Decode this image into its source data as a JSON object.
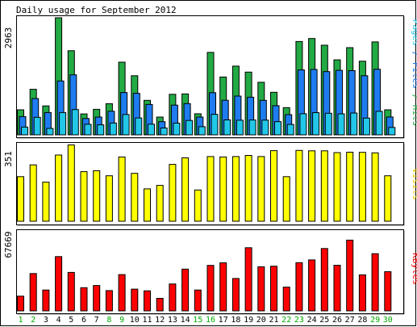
{
  "chart_data": [
    {
      "type": "bar",
      "title": "Daily usage for September 2012",
      "y_tick_label": "2963",
      "ylim": [
        0,
        2963
      ],
      "series": [
        {
          "name": "Hits",
          "color": "#22aa44",
          "values": [
            634,
            1152,
            731,
            2963,
            2129,
            530,
            646,
            788,
            1840,
            1495,
            872,
            450,
            1025,
            1036,
            533,
            2087,
            1464,
            1739,
            1588,
            1330,
            1077,
            689,
            2362,
            2438,
            2268,
            1899,
            2207,
            1863,
            2351,
            634
          ]
        },
        {
          "name": "Files",
          "color": "#1e7cf0",
          "values": [
            462,
            918,
            565,
            1363,
            1519,
            412,
            449,
            596,
            1071,
            1050,
            768,
            334,
            751,
            790,
            449,
            1066,
            875,
            981,
            953,
            872,
            738,
            511,
            1643,
            1655,
            1599,
            1633,
            1624,
            1495,
            1659,
            451
          ]
        },
        {
          "name": "Pages",
          "color": "#22c7e8",
          "values": [
            197,
            444,
            164,
            563,
            640,
            268,
            254,
            298,
            515,
            428,
            269,
            174,
            296,
            363,
            207,
            519,
            378,
            369,
            376,
            372,
            334,
            263,
            534,
            562,
            546,
            532,
            551,
            425,
            594,
            187
          ]
        }
      ],
      "legend_separator": " / "
    },
    {
      "type": "bar",
      "y_tick_label": "351",
      "ylim": [
        0,
        351
      ],
      "series": [
        {
          "name": "Visits",
          "color": "#ffff00",
          "values": [
            204,
            258,
            179,
            303,
            349,
            227,
            231,
            208,
            294,
            219,
            148,
            164,
            260,
            290,
            143,
            296,
            294,
            296,
            301,
            296,
            323,
            204,
            324,
            322,
            322,
            314,
            316,
            315,
            313,
            208
          ]
        }
      ]
    },
    {
      "type": "bar",
      "y_tick_label": "67669",
      "ylim": [
        0,
        67669
      ],
      "series": [
        {
          "name": "KBytes",
          "color": "#ff0000",
          "values": [
            12600,
            31900,
            17800,
            46400,
            32900,
            19800,
            21700,
            17300,
            31000,
            18600,
            17100,
            10700,
            23000,
            35700,
            17800,
            38900,
            41100,
            27700,
            54000,
            37700,
            38200,
            20300,
            41200,
            43600,
            53300,
            39000,
            60500,
            30800,
            48900,
            33500
          ]
        }
      ]
    }
  ],
  "days": [
    "1",
    "2",
    "3",
    "4",
    "5",
    "6",
    "7",
    "8",
    "9",
    "10",
    "11",
    "12",
    "13",
    "14",
    "15",
    "16",
    "17",
    "18",
    "19",
    "20",
    "21",
    "22",
    "23",
    "24",
    "25",
    "26",
    "27",
    "28",
    "29",
    "30"
  ],
  "weekend_days": [
    1,
    2,
    8,
    9,
    15,
    16,
    22,
    23,
    29,
    30
  ],
  "colors": {
    "weekday_label": "#000000",
    "weekend_label": "#00aa00",
    "frame": "#000000",
    "shadow": "#808080",
    "background": "#ffffff"
  }
}
